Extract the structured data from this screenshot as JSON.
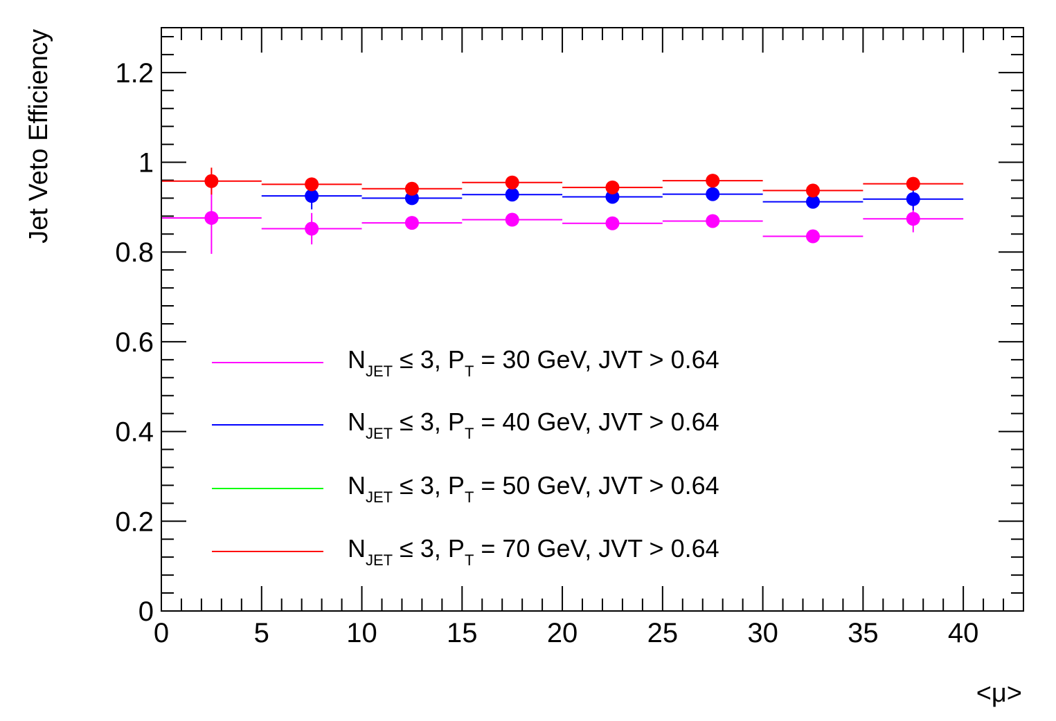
{
  "chart_data": {
    "type": "scatter",
    "title": "",
    "xlabel": "<μ>",
    "ylabel": "Jet Veto Efficiency",
    "xlim": [
      0,
      43
    ],
    "ylim": [
      0,
      1.3
    ],
    "x_ticks": [
      0,
      5,
      10,
      15,
      20,
      25,
      30,
      35,
      40
    ],
    "x_tick_labels": [
      "0",
      "5",
      "10",
      "15",
      "20",
      "25",
      "30",
      "35",
      "40"
    ],
    "y_ticks": [
      0,
      0.2,
      0.4,
      0.6,
      0.8,
      1,
      1.2
    ],
    "y_tick_labels": [
      "0",
      "0.2",
      "0.4",
      "0.6",
      "0.8",
      "1",
      "1.2"
    ],
    "grid": false,
    "legend_position": "bottom-left",
    "series": [
      {
        "name": "N_JET ≤ 3, P_T = 30 GeV, JVT > 0.64",
        "legend": {
          "pre": "N",
          "sub1": "JET",
          "mid": " ≤ 3, P",
          "sub2": "T",
          "post": " = 30 GeV, JVT > 0.64"
        },
        "color": "#ff00ff",
        "x": [
          2.5,
          7.5,
          12.5,
          17.5,
          22.5,
          27.5,
          32.5,
          37.5
        ],
        "bin_halfwidth": 2.5,
        "y": [
          0.876,
          0.852,
          0.865,
          0.872,
          0.864,
          0.869,
          0.835,
          0.874
        ],
        "y_err": [
          0.08,
          0.035,
          0.008,
          0.008,
          0.008,
          0.008,
          0.008,
          0.03
        ]
      },
      {
        "name": "N_JET ≤ 3, P_T = 40 GeV, JVT > 0.64",
        "legend": {
          "pre": "N",
          "sub1": "JET",
          "mid": " ≤ 3, P",
          "sub2": "T",
          "post": " = 40 GeV, JVT > 0.64"
        },
        "color": "#0000ff",
        "x": [
          7.5,
          12.5,
          17.5,
          22.5,
          27.5,
          32.5,
          37.5
        ],
        "bin_halfwidth": 2.5,
        "y": [
          0.925,
          0.92,
          0.928,
          0.923,
          0.929,
          0.912,
          0.918
        ],
        "y_err": [
          0.03,
          0.008,
          0.008,
          0.008,
          0.008,
          0.008,
          0.025
        ]
      },
      {
        "name": "N_JET ≤ 3, P_T = 50 GeV, JVT > 0.64",
        "legend": {
          "pre": "N",
          "sub1": "JET",
          "mid": " ≤ 3, P",
          "sub2": "T",
          "post": " = 50 GeV, JVT > 0.64"
        },
        "color": "#00ff00",
        "x": [],
        "bin_halfwidth": 2.5,
        "y": [],
        "y_err": []
      },
      {
        "name": "N_JET ≤ 3, P_T = 70 GeV, JVT > 0.64",
        "legend": {
          "pre": "N",
          "sub1": "JET",
          "mid": " ≤ 3, P",
          "sub2": "T",
          "post": " = 70 GeV, JVT > 0.64"
        },
        "color": "#ff0000",
        "x": [
          2.5,
          7.5,
          12.5,
          17.5,
          22.5,
          27.5,
          32.5,
          37.5
        ],
        "bin_halfwidth": 2.5,
        "y": [
          0.958,
          0.951,
          0.941,
          0.955,
          0.944,
          0.959,
          0.937,
          0.952
        ],
        "y_err": [
          0.03,
          0.008,
          0.008,
          0.008,
          0.008,
          0.008,
          0.008,
          0.008
        ]
      }
    ]
  }
}
